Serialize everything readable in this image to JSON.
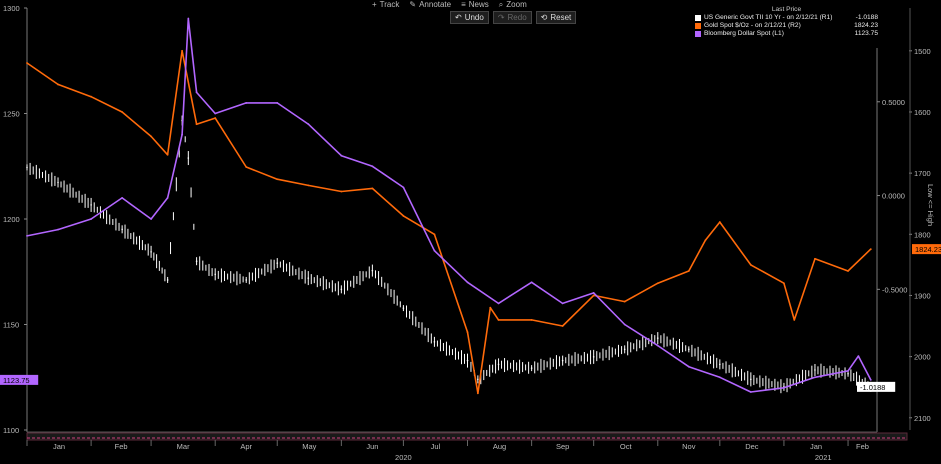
{
  "toolbar": {
    "track": "Track",
    "annotate": "Annotate",
    "news": "News",
    "zoom": "Zoom",
    "undo": "Undo",
    "redo": "Redo",
    "reset": "Reset"
  },
  "legend": {
    "header": "Last Price",
    "entries": [
      {
        "label": "US Generic Govt TII 10 Yr -  on 2/12/21  (R1)",
        "value": "-1.0188",
        "color": "#ffffff"
      },
      {
        "label": "Gold Spot   $/Oz -  on 2/12/21  (R2)",
        "value": "1824.23",
        "color": "#ff6a0a"
      },
      {
        "label": "Bloomberg Dollar Spot  (L1)",
        "value": "1123.75",
        "color": "#b266ff"
      }
    ]
  },
  "right_axis_title": "Low <= High",
  "tags": {
    "left": "1123.75",
    "gold": "1824.23",
    "tii": "-1.0188"
  },
  "chart_data": {
    "type": "line",
    "x": [
      "2020-01",
      "2020-02",
      "2020-03",
      "2020-04",
      "2020-05",
      "2020-06",
      "2020-07",
      "2020-08",
      "2020-09",
      "2020-10",
      "2020-11",
      "2020-12",
      "2021-01",
      "2021-02"
    ],
    "x_tick_labels": [
      "Jan",
      "Feb",
      "Mar",
      "Apr",
      "May",
      "Jun",
      "Jul",
      "Aug",
      "Sep",
      "Oct",
      "Nov",
      "Dec",
      "Jan",
      "Feb"
    ],
    "year_labels": [
      "2020",
      "2021"
    ],
    "left_axis": {
      "ticks": [
        "1300",
        "1250",
        "1200",
        "1150",
        "1100"
      ],
      "range": [
        1100,
        1300
      ]
    },
    "right_axis_1": {
      "ticks": [
        "0.5000",
        "0.0000",
        "-0.5000"
      ],
      "range": [
        1.0,
        -1.25
      ]
    },
    "right_axis_2": {
      "ticks": [
        "1500",
        "1600",
        "1700",
        "1800",
        "1900",
        "2000",
        "2100"
      ],
      "range": [
        1430,
        2120
      ],
      "inverted": true
    },
    "series": [
      {
        "name": "US Generic Govt TII 10 Yr",
        "axis": "right_axis_1",
        "color": "#ffffff",
        "style": "bar",
        "x": [
          "2020-01-01",
          "2020-01-16",
          "2020-02-01",
          "2020-02-16",
          "2020-03-01",
          "2020-03-09",
          "2020-03-16",
          "2020-03-19",
          "2020-03-23",
          "2020-04-01",
          "2020-04-16",
          "2020-05-01",
          "2020-05-16",
          "2020-06-01",
          "2020-06-16",
          "2020-07-01",
          "2020-07-16",
          "2020-08-01",
          "2020-08-06",
          "2020-08-16",
          "2020-09-01",
          "2020-09-16",
          "2020-10-01",
          "2020-10-16",
          "2020-11-01",
          "2020-11-16",
          "2020-12-01",
          "2020-12-16",
          "2021-01-01",
          "2021-01-16",
          "2021-02-01",
          "2021-02-12"
        ],
        "y": [
          0.15,
          0.07,
          -0.05,
          -0.18,
          -0.3,
          -0.45,
          0.4,
          0.2,
          -0.35,
          -0.42,
          -0.45,
          -0.36,
          -0.44,
          -0.5,
          -0.4,
          -0.6,
          -0.78,
          -0.88,
          -0.98,
          -0.9,
          -0.92,
          -0.88,
          -0.86,
          -0.82,
          -0.76,
          -0.82,
          -0.9,
          -0.98,
          -1.02,
          -0.93,
          -0.95,
          -1.02
        ]
      },
      {
        "name": "Gold Spot $/Oz",
        "axis": "right_axis_2",
        "color": "#ff6a0a",
        "style": "line",
        "x": [
          "2020-01-01",
          "2020-01-16",
          "2020-02-01",
          "2020-02-16",
          "2020-03-01",
          "2020-03-09",
          "2020-03-16",
          "2020-03-23",
          "2020-04-01",
          "2020-04-16",
          "2020-05-01",
          "2020-05-16",
          "2020-06-01",
          "2020-06-16",
          "2020-07-01",
          "2020-07-16",
          "2020-08-01",
          "2020-08-06",
          "2020-08-12",
          "2020-08-16",
          "2020-09-01",
          "2020-09-16",
          "2020-10-01",
          "2020-10-16",
          "2020-11-01",
          "2020-11-16",
          "2020-11-24",
          "2020-12-01",
          "2020-12-16",
          "2021-01-01",
          "2021-01-06",
          "2021-01-16",
          "2021-02-01",
          "2021-02-12"
        ],
        "y": [
          1520,
          1555,
          1575,
          1600,
          1640,
          1670,
          1500,
          1620,
          1610,
          1690,
          1710,
          1720,
          1730,
          1725,
          1770,
          1800,
          1960,
          2060,
          1920,
          1940,
          1940,
          1950,
          1900,
          1910,
          1880,
          1860,
          1810,
          1780,
          1850,
          1880,
          1940,
          1840,
          1860,
          1824.23
        ]
      },
      {
        "name": "Bloomberg Dollar Spot",
        "axis": "left_axis",
        "color": "#b266ff",
        "style": "line",
        "x": [
          "2020-01-01",
          "2020-01-16",
          "2020-02-01",
          "2020-02-16",
          "2020-03-01",
          "2020-03-09",
          "2020-03-16",
          "2020-03-19",
          "2020-03-23",
          "2020-04-01",
          "2020-04-16",
          "2020-05-01",
          "2020-05-16",
          "2020-06-01",
          "2020-06-16",
          "2020-07-01",
          "2020-07-16",
          "2020-08-01",
          "2020-08-16",
          "2020-09-01",
          "2020-09-16",
          "2020-10-01",
          "2020-10-16",
          "2020-11-01",
          "2020-11-16",
          "2020-12-01",
          "2020-12-16",
          "2021-01-01",
          "2021-01-16",
          "2021-02-01",
          "2021-02-06",
          "2021-02-12"
        ],
        "y": [
          1192,
          1195,
          1200,
          1210,
          1200,
          1210,
          1240,
          1295,
          1260,
          1250,
          1255,
          1255,
          1245,
          1230,
          1225,
          1215,
          1185,
          1170,
          1160,
          1170,
          1160,
          1165,
          1150,
          1140,
          1130,
          1125,
          1118,
          1120,
          1125,
          1128,
          1135,
          1123.75
        ]
      }
    ]
  }
}
